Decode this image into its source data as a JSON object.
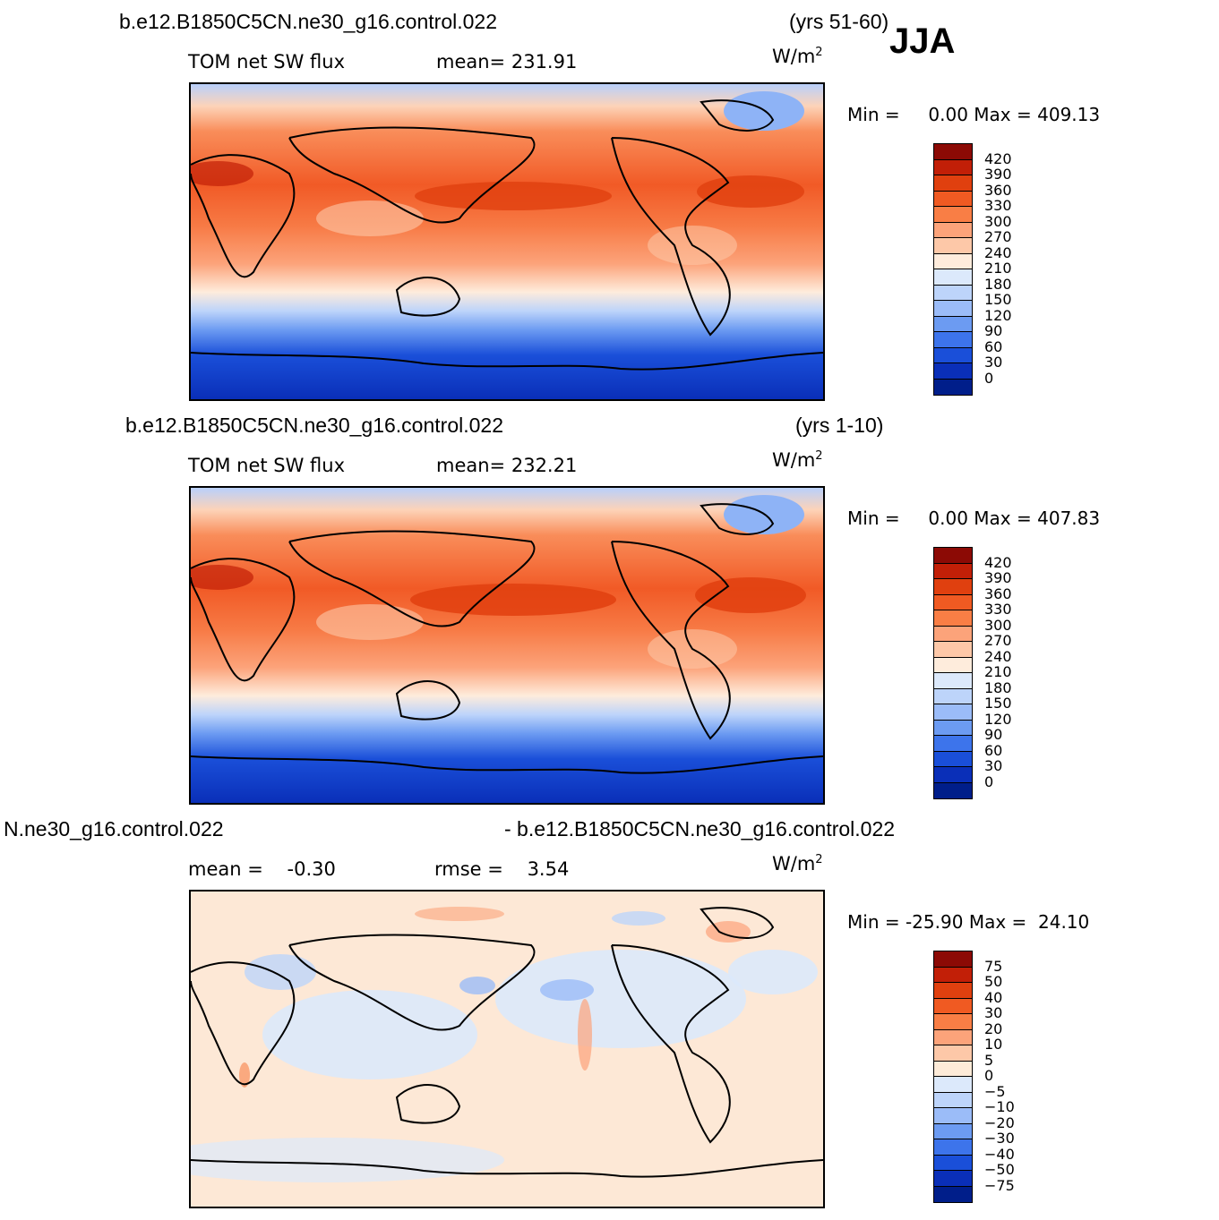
{
  "season": "JJA",
  "units_base": "W/m",
  "units_exp": "2",
  "panels": [
    {
      "case_name": "b.e12.B1850C5CN.ne30_g16.control.022",
      "years": "(yrs 51-60)",
      "variable": "TOM net SW flux",
      "stat_label": "mean=",
      "stat_value": "231.91",
      "min_label": "Min =",
      "min_value": "0.00",
      "max_label": "Max =",
      "max_value": "409.13",
      "colorbar_labels": [
        "420",
        "390",
        "360",
        "330",
        "300",
        "270",
        "240",
        "210",
        "180",
        "150",
        "120",
        "90",
        "60",
        "30",
        "0"
      ],
      "colorbar_colors": [
        "#8c0a05",
        "#c21f07",
        "#e0400f",
        "#f05a22",
        "#f97e45",
        "#fca37a",
        "#fdc8a8",
        "#feecdc",
        "#dce9fb",
        "#bdd4fa",
        "#9bbcf8",
        "#6c9bf2",
        "#3d74eb",
        "#1a4fd9",
        "#0a2fb8",
        "#001e8a"
      ]
    },
    {
      "case_name": "b.e12.B1850C5CN.ne30_g16.control.022",
      "years": "(yrs 1-10)",
      "variable": "TOM net SW flux",
      "stat_label": "mean=",
      "stat_value": "232.21",
      "min_label": "Min =",
      "min_value": "0.00",
      "max_label": "Max =",
      "max_value": "407.83",
      "colorbar_labels": [
        "420",
        "390",
        "360",
        "330",
        "300",
        "270",
        "240",
        "210",
        "180",
        "150",
        "120",
        "90",
        "60",
        "30",
        "0"
      ],
      "colorbar_colors": [
        "#8c0a05",
        "#c21f07",
        "#e0400f",
        "#f05a22",
        "#f97e45",
        "#fca37a",
        "#fdc8a8",
        "#feecdc",
        "#dce9fb",
        "#bdd4fa",
        "#9bbcf8",
        "#6c9bf2",
        "#3d74eb",
        "#1a4fd9",
        "#0a2fb8",
        "#001e8a"
      ]
    },
    {
      "case_name_left": "N.ne30_g16.control.022",
      "case_name_right": "- b.e12.B1850C5CN.ne30_g16.control.022",
      "mean_label": "mean =",
      "mean_value": "-0.30",
      "rmse_label": "rmse =",
      "rmse_value": "3.54",
      "min_label": "Min =",
      "min_value": "-25.90",
      "max_label": "Max =",
      "max_value": "24.10",
      "colorbar_labels": [
        "75",
        "50",
        "40",
        "30",
        "20",
        "10",
        "5",
        "0",
        "-5",
        "-10",
        "-20",
        "-30",
        "-40",
        "-50",
        "-75"
      ],
      "colorbar_colors": [
        "#8c0a05",
        "#c21f07",
        "#e0400f",
        "#f05a22",
        "#f97e45",
        "#fca37a",
        "#fdc8a8",
        "#fdebd8",
        "#dce9fb",
        "#bdd4fa",
        "#9bbcf8",
        "#6c9bf2",
        "#3d74eb",
        "#1a4fd9",
        "#0a2fb8",
        "#001e8a"
      ]
    }
  ]
}
